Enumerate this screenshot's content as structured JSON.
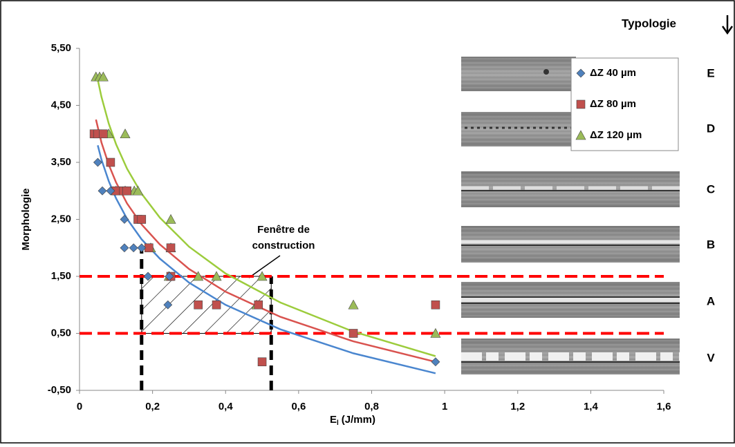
{
  "chart_data": {
    "type": "scatter",
    "ylabel": "Morphologie",
    "xlabel": {
      "text": "E",
      "subscript": "l",
      "unit": "(J/mm)"
    },
    "xlim": [
      0,
      1.6
    ],
    "ylim": [
      -0.5,
      5.5
    ],
    "xticks": [
      0,
      {
        "value": 0.2,
        "label": "0,2"
      },
      {
        "value": 0.4,
        "label": "0,4"
      },
      {
        "value": 0.6,
        "label": "0,6"
      },
      {
        "value": 0.8,
        "label": "0,8"
      },
      1,
      {
        "value": 1.2,
        "label": "1,2"
      },
      {
        "value": 1.4,
        "label": "1,4"
      },
      {
        "value": 1.6,
        "label": "1,6"
      }
    ],
    "yticks": [
      {
        "value": -0.5,
        "label": "-0,50"
      },
      {
        "value": 0.5,
        "label": "0,50"
      },
      {
        "value": 1.5,
        "label": "1,50"
      },
      {
        "value": 2.5,
        "label": "2,50"
      },
      {
        "value": 3.5,
        "label": "3,50"
      },
      {
        "value": 4.5,
        "label": "4,50"
      },
      {
        "value": 5.5,
        "label": "5,50"
      }
    ],
    "series": [
      {
        "name": "ΔZ 40 µm",
        "color": "#4f81bd",
        "marker": "diamond",
        "x": [
          0.05,
          0.0625,
          0.085,
          0.123,
          0.123,
          0.148,
          0.17,
          0.1875,
          0.242,
          0.246,
          0.975
        ],
        "values": [
          3.5,
          3.0,
          3.0,
          2.5,
          2.0,
          2.0,
          2.0,
          1.5,
          1.0,
          1.5,
          0
        ],
        "trend": {
          "color": "#4a86cf",
          "x": [
            0.05,
            0.06,
            0.08,
            0.1,
            0.13,
            0.17,
            0.22,
            0.3,
            0.4,
            0.55,
            0.75,
            0.975
          ],
          "y": [
            3.8,
            3.55,
            3.17,
            2.87,
            2.51,
            2.15,
            1.81,
            1.39,
            1.0,
            0.57,
            0.15,
            -0.2
          ]
        }
      },
      {
        "name": "ΔZ 80 µm",
        "color": "#c0504d",
        "marker": "square",
        "x": [
          0.04,
          0.05,
          0.065,
          0.085,
          0.1,
          0.12,
          0.13,
          0.16,
          0.17,
          0.19,
          0.25,
          0.25,
          0.325,
          0.375,
          0.49,
          0.75,
          0.5,
          0.975
        ],
        "values": [
          4.0,
          4.0,
          4.0,
          3.5,
          3.0,
          3.0,
          3.0,
          2.5,
          2.5,
          2.0,
          2.0,
          1.5,
          1.0,
          1.0,
          1.0,
          0.5,
          0,
          1.0
        ],
        "trend": {
          "color": "#d9534f",
          "x": [
            0.045,
            0.06,
            0.08,
            0.1,
            0.13,
            0.17,
            0.22,
            0.3,
            0.4,
            0.55,
            0.75,
            0.975
          ],
          "y": [
            4.25,
            3.85,
            3.46,
            3.15,
            2.78,
            2.41,
            2.06,
            1.63,
            1.23,
            0.79,
            0.36,
            0.0
          ]
        }
      },
      {
        "name": "ΔZ 120 µm",
        "color": "#9bbb59",
        "marker": "triangle",
        "x": [
          0.045,
          0.055,
          0.065,
          0.08,
          0.125,
          0.1,
          0.125,
          0.15,
          0.16,
          0.25,
          0.195,
          0.25,
          0.245,
          0.325,
          0.375,
          0.5,
          0.75,
          0.485,
          0.975
        ],
        "values": [
          5.0,
          5.0,
          5.0,
          4.0,
          4.0,
          3.0,
          3.0,
          3.0,
          3.0,
          2.5,
          2.0,
          2.0,
          1.5,
          1.5,
          1.5,
          1.5,
          1.0,
          1.0,
          0.5
        ],
        "trend": {
          "color": "#9ccc3c",
          "x": [
            0.05,
            0.06,
            0.08,
            0.1,
            0.13,
            0.17,
            0.22,
            0.3,
            0.4,
            0.55,
            0.75,
            0.975
          ],
          "y": [
            4.95,
            4.65,
            4.18,
            3.82,
            3.39,
            2.95,
            2.53,
            2.02,
            1.55,
            1.04,
            0.53,
            0.1
          ]
        }
      }
    ],
    "thresholds": {
      "values": [
        1.5,
        0.5
      ],
      "color": "#ff0000"
    },
    "window": {
      "x": [
        0.17,
        0.525
      ],
      "y": [
        0.5,
        1.5
      ],
      "label": [
        "Fenêtre de",
        "construction"
      ]
    },
    "typology": {
      "title": "Typologie",
      "labels": [
        "E",
        "D",
        "C",
        "B",
        "A",
        "V"
      ]
    }
  }
}
